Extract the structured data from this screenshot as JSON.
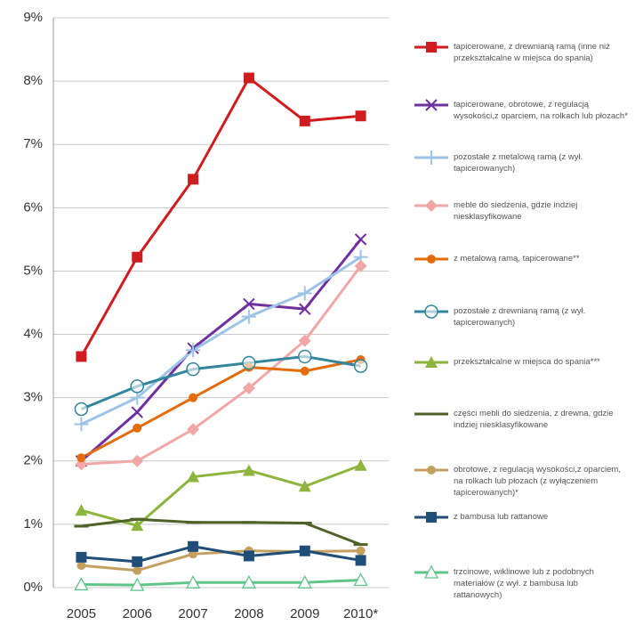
{
  "chart_data": {
    "type": "line",
    "categories": [
      "2005",
      "2006",
      "2007",
      "2008",
      "2009",
      "2010*"
    ],
    "ylim": [
      0,
      9
    ],
    "yticks": [
      {
        "value": 0,
        "label": "0%"
      },
      {
        "value": 1,
        "label": "1%"
      },
      {
        "value": 2,
        "label": "2%"
      },
      {
        "value": 3,
        "label": "3%"
      },
      {
        "value": 4,
        "label": "4%"
      },
      {
        "value": 5,
        "label": "5%"
      },
      {
        "value": 6,
        "label": "6%"
      },
      {
        "value": 7,
        "label": "7%"
      },
      {
        "value": 8,
        "label": "8%"
      },
      {
        "value": 9,
        "label": "9%"
      }
    ],
    "grid": true,
    "legend": "right",
    "series": [
      {
        "name": "tapicerowane, z drewnianą ramą (inne niż przekształcalne w miejsca do spania)",
        "color": "#d01c1f",
        "marker": "square",
        "values": [
          3.65,
          5.22,
          6.45,
          8.05,
          7.37,
          7.45
        ]
      },
      {
        "name": "tapicerowane, obrotowe, z regulacją wysokości,z oparciem, na rolkach lub płozach*",
        "color": "#7030a0",
        "marker": "x",
        "values": [
          2.0,
          2.77,
          3.78,
          4.48,
          4.4,
          5.5
        ]
      },
      {
        "name": "pozostałe z metalową ramą (z wył. tapicerowanych)",
        "color": "#9dc3e6",
        "marker": "plus",
        "values": [
          2.58,
          3.0,
          3.75,
          4.28,
          4.65,
          5.22
        ]
      },
      {
        "name": "meble do siedzenia, gdzie indziej niesklasyfikowane",
        "color": "#f2a7a7",
        "marker": "diamond",
        "values": [
          1.95,
          2.0,
          2.5,
          3.15,
          3.9,
          5.08
        ]
      },
      {
        "name": "z metalową ramą, tapicerowane**",
        "color": "#e46c0a",
        "marker": "circle",
        "values": [
          2.05,
          2.52,
          3.0,
          3.48,
          3.42,
          3.6
        ]
      },
      {
        "name": "pozostałe z drewnianą ramą (z wył. tapicerowanych)",
        "color": "#31859c",
        "marker": "open-circle",
        "values": [
          2.82,
          3.18,
          3.45,
          3.55,
          3.65,
          3.5
        ]
      },
      {
        "name": "przekształcalne w miejsca do spania***",
        "color": "#8db43c",
        "marker": "triangle",
        "values": [
          1.22,
          0.98,
          1.75,
          1.85,
          1.6,
          1.93
        ]
      },
      {
        "name": "części mebli do siedzenia, z drewna, gdzie indziej niesklasyfikowane",
        "color": "#4f6228",
        "marker": "dash",
        "values": [
          0.97,
          1.08,
          1.03,
          1.03,
          1.02,
          0.68
        ]
      },
      {
        "name": "obrotowe, z regulacją wysokości,z oparciem, na rolkach lub płozach (z wyłączeniem tapicerowanych)*",
        "color": "#c4a060",
        "marker": "circle",
        "values": [
          0.35,
          0.27,
          0.53,
          0.58,
          0.57,
          0.58
        ]
      },
      {
        "name": "z bambusa lub rattanowe",
        "color": "#1f4e79",
        "marker": "square",
        "values": [
          0.48,
          0.41,
          0.65,
          0.5,
          0.58,
          0.43
        ]
      },
      {
        "name": "trzcinowe, wiklinowe lub z podobnych materiałów (z wył. z bambusa lub rattanowych)",
        "color": "#5fc488",
        "marker": "open-triangle",
        "values": [
          0.05,
          0.04,
          0.08,
          0.08,
          0.08,
          0.12
        ]
      }
    ]
  }
}
